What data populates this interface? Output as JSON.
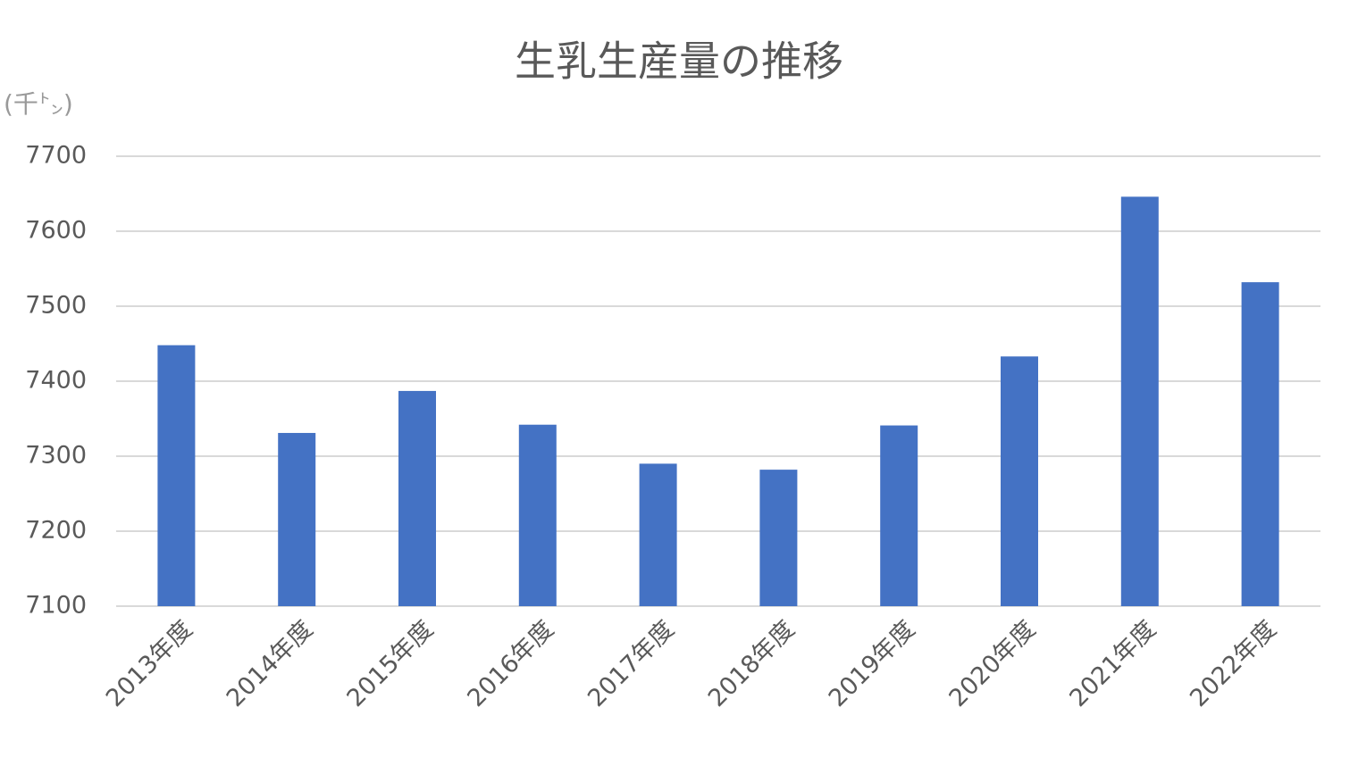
{
  "chart_data": {
    "type": "bar",
    "title": "生乳生産量の推移",
    "y_axis_label": "(千㌧)",
    "categories": [
      "2013年度",
      "2014年度",
      "2015年度",
      "2016年度",
      "2017年度",
      "2018年度",
      "2019年度",
      "2020年度",
      "2021年度",
      "2022年度"
    ],
    "values": [
      7448,
      7331,
      7387,
      7342,
      7290,
      7282,
      7341,
      7433,
      7646,
      7532
    ],
    "color": "#4472c4",
    "ylim": [
      7100,
      7700
    ],
    "yticks": [
      7100,
      7200,
      7300,
      7400,
      7500,
      7600,
      7700
    ],
    "grid": true
  }
}
